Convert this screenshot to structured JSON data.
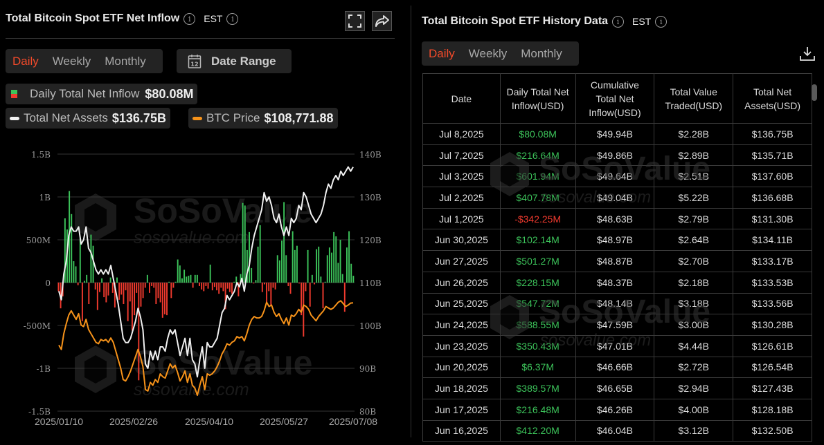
{
  "left_panel": {
    "title": "Total Bitcoin Spot ETF Net Inflow",
    "timezone": "EST",
    "tabs": [
      {
        "label": "Daily",
        "active": true
      },
      {
        "label": "Weekly",
        "active": false
      },
      {
        "label": "Monthly",
        "active": false
      }
    ],
    "date_range_label": "Date Range",
    "calendar_icon_day": "12",
    "legend": {
      "inflow_label": "Daily Total Net Inflow",
      "inflow_value": "$80.08M",
      "assets_label": "Total Net Assets",
      "assets_value": "$136.75B",
      "btc_label": "BTC Price",
      "btc_value": "$108,771.88"
    },
    "watermark": {
      "brand": "SoSoValue",
      "site": "sosovalue.com"
    }
  },
  "right_panel": {
    "title": "Total Bitcoin Spot ETF History Data",
    "timezone": "EST",
    "tabs": [
      {
        "label": "Daily",
        "active": true
      },
      {
        "label": "Weekly",
        "active": false
      },
      {
        "label": "Monthly",
        "active": false
      }
    ],
    "table": {
      "headers": [
        [
          "Date"
        ],
        [
          "Daily Total Net",
          "Inflow(USD)"
        ],
        [
          "Cumulative",
          "Total Net",
          "Inflow(USD)"
        ],
        [
          "Total Value",
          "Traded(USD)"
        ],
        [
          "Total Net",
          "Assets(USD)"
        ]
      ],
      "rows": [
        {
          "date": "Jul 8,2025",
          "inflow": "$80.08M",
          "sign": "pos",
          "cumulative": "$49.94B",
          "traded": "$2.28B",
          "assets": "$136.75B"
        },
        {
          "date": "Jul 7,2025",
          "inflow": "$216.64M",
          "sign": "pos",
          "cumulative": "$49.86B",
          "traded": "$2.89B",
          "assets": "$135.71B"
        },
        {
          "date": "Jul 3,2025",
          "inflow": "$601.94M",
          "sign": "pos",
          "cumulative": "$49.64B",
          "traded": "$2.51B",
          "assets": "$137.60B"
        },
        {
          "date": "Jul 2,2025",
          "inflow": "$407.78M",
          "sign": "pos",
          "cumulative": "$49.04B",
          "traded": "$5.22B",
          "assets": "$136.68B"
        },
        {
          "date": "Jul 1,2025",
          "inflow": "-$342.25M",
          "sign": "neg",
          "cumulative": "$48.63B",
          "traded": "$2.79B",
          "assets": "$131.30B"
        },
        {
          "date": "Jun 30,2025",
          "inflow": "$102.14M",
          "sign": "pos",
          "cumulative": "$48.97B",
          "traded": "$2.64B",
          "assets": "$134.11B"
        },
        {
          "date": "Jun 27,2025",
          "inflow": "$501.27M",
          "sign": "pos",
          "cumulative": "$48.87B",
          "traded": "$2.70B",
          "assets": "$133.17B"
        },
        {
          "date": "Jun 26,2025",
          "inflow": "$228.15M",
          "sign": "pos",
          "cumulative": "$48.37B",
          "traded": "$2.18B",
          "assets": "$133.53B"
        },
        {
          "date": "Jun 25,2025",
          "inflow": "$547.72M",
          "sign": "pos",
          "cumulative": "$48.14B",
          "traded": "$3.18B",
          "assets": "$133.56B"
        },
        {
          "date": "Jun 24,2025",
          "inflow": "$588.55M",
          "sign": "pos",
          "cumulative": "$47.59B",
          "traded": "$3.00B",
          "assets": "$130.28B"
        },
        {
          "date": "Jun 23,2025",
          "inflow": "$350.43M",
          "sign": "pos",
          "cumulative": "$47.01B",
          "traded": "$4.44B",
          "assets": "$126.61B"
        },
        {
          "date": "Jun 20,2025",
          "inflow": "$6.37M",
          "sign": "pos",
          "cumulative": "$46.66B",
          "traded": "$2.72B",
          "assets": "$126.54B"
        },
        {
          "date": "Jun 18,2025",
          "inflow": "$389.57M",
          "sign": "pos",
          "cumulative": "$46.65B",
          "traded": "$2.94B",
          "assets": "$127.43B"
        },
        {
          "date": "Jun 17,2025",
          "inflow": "$216.48M",
          "sign": "pos",
          "cumulative": "$46.26B",
          "traded": "$4.00B",
          "assets": "$128.18B"
        },
        {
          "date": "Jun 16,2025",
          "inflow": "$412.20M",
          "sign": "pos",
          "cumulative": "$46.04B",
          "traded": "$3.12B",
          "assets": "$132.50B"
        }
      ]
    },
    "watermark": {
      "brand": "SoSoValue",
      "site": "sosovalue.com"
    }
  },
  "colors": {
    "accent": "#f24a2a",
    "positive": "#3cc35a",
    "negative": "#f03a2e",
    "assets_line": "#f0f0f0",
    "btc_line": "#f7931a",
    "panel_bg": "#232323"
  },
  "chart_data": {
    "type": "bar",
    "title": "Total Bitcoin Spot ETF Net Inflow",
    "x_tick_labels": [
      "2025/01/10",
      "2025/02/26",
      "2025/04/10",
      "2025/05/27",
      "2025/07/08"
    ],
    "left_axis": {
      "label": "Daily Total Net Inflow",
      "ticks": [
        "1.5B",
        "1B",
        "500M",
        "0",
        "-500M",
        "-1B",
        "-1.5B"
      ],
      "range": [
        -1500000000,
        1500000000
      ]
    },
    "right_axis": {
      "label": "Total Net Assets",
      "ticks": [
        "140B",
        "130B",
        "120B",
        "110B",
        "100B",
        "90B",
        "80B"
      ],
      "range": [
        80,
        140
      ]
    },
    "grid": true,
    "series": [
      {
        "name": "Daily Total Net Inflow",
        "type": "bar",
        "unit": "USD M",
        "values": [
          -100,
          -300,
          -160,
          750,
          620,
          1070,
          800,
          250,
          190,
          -30,
          520,
          -450,
          20,
          90,
          -250,
          560,
          430,
          -80,
          -320,
          -110,
          50,
          -170,
          -230,
          -150,
          60,
          -120,
          -290,
          60,
          -200,
          -140,
          -250,
          -90,
          -450,
          -220,
          -560,
          -380,
          -120,
          -1140,
          -280,
          -180,
          -60,
          90,
          -120,
          -40,
          -60,
          -250,
          -180,
          -230,
          -410,
          -370,
          -380,
          10,
          -180,
          -60,
          10,
          270,
          200,
          50,
          150,
          70,
          80,
          90,
          -60,
          90,
          90,
          -40,
          -80,
          -100,
          -40,
          -70,
          210,
          -90,
          -50,
          -90,
          -130,
          -60,
          -100,
          -310,
          -70,
          -110,
          -130,
          10,
          70,
          -160,
          100,
          930,
          900,
          380,
          590,
          170,
          -10,
          30,
          420,
          670,
          -110,
          -20,
          -230,
          -100,
          -260,
          -60,
          -80,
          320,
          260,
          490,
          940,
          320,
          -40,
          -130,
          600,
          380,
          430,
          -10,
          -380,
          -630,
          -100,
          380,
          -280,
          90,
          -20,
          390,
          420,
          70,
          -300,
          10,
          320,
          410,
          350,
          590,
          540,
          230,
          500,
          100,
          -340,
          410,
          600,
          220,
          80
        ]
      },
      {
        "name": "Total Net Assets",
        "type": "line",
        "unit": "USD B",
        "values": [
          108,
          106,
          112,
          115,
          121,
          123,
          122,
          122,
          123,
          119,
          120,
          123,
          118,
          117,
          115,
          113,
          112,
          113,
          112,
          113,
          112,
          114,
          111,
          108,
          105,
          101,
          97,
          96,
          96,
          97,
          99,
          101,
          104,
          102,
          99,
          91,
          90,
          94,
          92,
          94,
          92,
          95,
          95,
          94,
          97,
          99,
          98,
          99,
          96,
          93,
          95,
          97,
          93,
          97,
          92,
          91,
          88,
          92,
          95,
          90,
          96,
          95,
          95,
          96,
          97,
          100,
          103,
          104,
          107,
          106,
          107,
          108,
          110,
          109,
          111,
          108,
          112,
          114,
          118,
          121,
          123,
          125,
          127,
          131,
          129,
          130,
          128,
          125,
          124,
          126,
          123,
          121,
          123,
          121,
          125,
          124,
          125,
          128,
          127,
          131,
          130,
          128,
          126,
          125,
          124,
          125,
          126,
          128,
          131,
          133,
          132,
          134,
          135,
          134,
          136,
          135,
          136,
          137,
          136,
          137
        ]
      },
      {
        "name": "BTC Price",
        "type": "line",
        "unit": "USD",
        "values": [
          94000,
          92500,
          98000,
          101500,
          104500,
          106000,
          104500,
          103000,
          105000,
          101000,
          100500,
          103000,
          99500,
          98000,
          96500,
          95000,
          94500,
          96000,
          95500,
          96000,
          95000,
          96500,
          95000,
          92000,
          89000,
          86000,
          82000,
          81500,
          83000,
          85000,
          87500,
          90000,
          92500,
          90000,
          86500,
          78500,
          78000,
          81000,
          80000,
          82000,
          81000,
          84000,
          83000,
          82500,
          85000,
          87500,
          86000,
          87000,
          84500,
          81500,
          83000,
          85000,
          81000,
          84000,
          80000,
          79000,
          76500,
          80000,
          83000,
          78500,
          84000,
          83500,
          84000,
          85000,
          86500,
          88500,
          91000,
          92500,
          94500,
          94000,
          95000,
          95500,
          97000,
          96500,
          97000,
          95500,
          98000,
          101000,
          103000,
          104000,
          103500,
          103500,
          104000,
          106000,
          109000,
          107500,
          108000,
          105500,
          104000,
          105000,
          103000,
          101500,
          103500,
          101000,
          104500,
          104000,
          105000,
          106500,
          105500,
          108000,
          107500,
          106500,
          104500,
          103500,
          102500,
          104000,
          105000,
          106000,
          107500,
          107000,
          106500,
          107000,
          108000,
          109000,
          109500,
          108500,
          107500,
          108000,
          108700,
          108770
        ]
      }
    ]
  }
}
